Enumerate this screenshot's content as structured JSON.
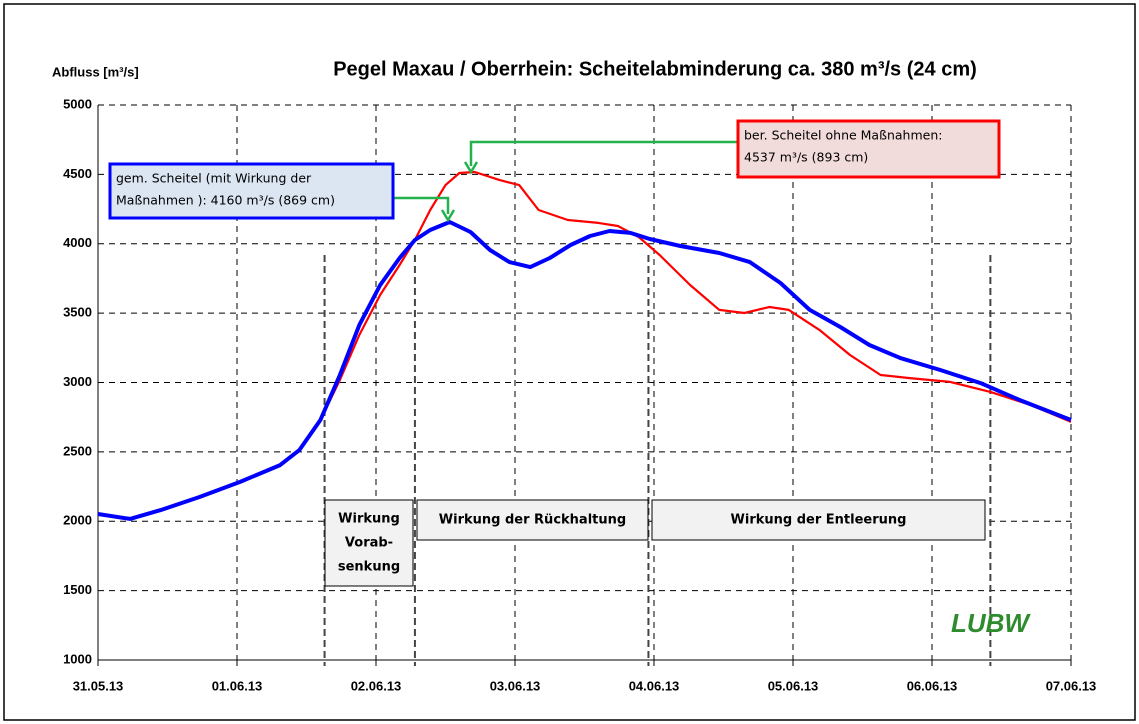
{
  "chart_data": {
    "type": "line",
    "title": "Pegel Maxau / Oberrhein: Scheitelabminderung ca. 380 m³/s  (24 cm)",
    "y_label": "Abfluss [m³/s]",
    "xlim": [
      0,
      7
    ],
    "xticks": [
      {
        "value": 0,
        "label": "31.05.13"
      },
      {
        "value": 1,
        "label": "01.06.13"
      },
      {
        "value": 2,
        "label": "02.06.13"
      },
      {
        "value": 3,
        "label": "03.06.13"
      },
      {
        "value": 4,
        "label": "04.06.13"
      },
      {
        "value": 5,
        "label": "05.06.13"
      },
      {
        "value": 6,
        "label": "06.06.13"
      },
      {
        "value": 7,
        "label": "07.06.13"
      }
    ],
    "ylim": [
      1000,
      5000
    ],
    "yticks": [
      1000,
      1500,
      2000,
      2500,
      3000,
      3500,
      4000,
      4500,
      5000
    ],
    "grid": true,
    "series": [
      {
        "color": "#ff0000",
        "x": [
          0,
          0.23,
          0.45,
          0.73,
          1.02,
          1.31,
          1.45,
          1.6,
          1.74,
          1.88,
          2.03,
          2.17,
          2.28,
          2.39,
          2.5,
          2.6,
          2.71,
          2.89,
          3.03,
          3.17,
          3.38,
          3.6,
          3.74,
          3.89,
          4.04,
          4.26,
          4.47,
          4.65,
          4.83,
          4.97,
          5.19,
          5.41,
          5.63,
          5.84,
          6.13,
          6.42,
          6.71,
          7.0
        ],
        "values": [
          2052,
          2017,
          2080,
          2175,
          2283,
          2405,
          2514,
          2730,
          3018,
          3342,
          3631,
          3847,
          4027,
          4243,
          4423,
          4510,
          4517,
          4459,
          4423,
          4243,
          4171,
          4150,
          4128,
          4049,
          3919,
          3703,
          3523,
          3501,
          3544,
          3523,
          3379,
          3198,
          3054,
          3032,
          3004,
          2932,
          2838,
          2716
        ]
      },
      {
        "color": "#0000ff",
        "x": [
          0,
          0.23,
          0.45,
          0.73,
          1.02,
          1.31,
          1.45,
          1.6,
          1.74,
          1.88,
          2.03,
          2.17,
          2.28,
          2.39,
          2.53,
          2.68,
          2.82,
          2.96,
          3.11,
          3.25,
          3.4,
          3.54,
          3.68,
          3.83,
          3.97,
          4.19,
          4.47,
          4.69,
          4.91,
          5.12,
          5.34,
          5.55,
          5.77,
          6.06,
          6.35,
          6.63,
          7.0
        ],
        "values": [
          2052,
          2017,
          2080,
          2175,
          2283,
          2405,
          2514,
          2730,
          3054,
          3414,
          3703,
          3897,
          4027,
          4099,
          4157,
          4085,
          3955,
          3868,
          3832,
          3897,
          3991,
          4056,
          4092,
          4078,
          4034,
          3984,
          3933,
          3868,
          3717,
          3523,
          3400,
          3270,
          3177,
          3090,
          2996,
          2874,
          2730
        ]
      }
    ],
    "vlines": [
      1.63,
      2.28,
      3.96,
      6.42
    ],
    "annotations": [
      {
        "lines": [
          "gem. Scheitel (mit Wirkung der",
          "Maßnahmen ):  4160 m³/s (869 cm)"
        ],
        "color": "#0000ff"
      },
      {
        "lines": [
          "ber. Scheitel ohne Maßnahmen:",
          "4537 m³/s (893 cm)"
        ],
        "color": "#ff0000"
      }
    ],
    "phases": [
      {
        "lines": [
          "Wirkung",
          "Vorab-",
          "senkung"
        ]
      },
      {
        "lines": [
          "Wirkung der Rückhaltung"
        ]
      },
      {
        "lines": [
          "Wirkung der Entleerung"
        ]
      }
    ],
    "logo": "LUBW"
  }
}
